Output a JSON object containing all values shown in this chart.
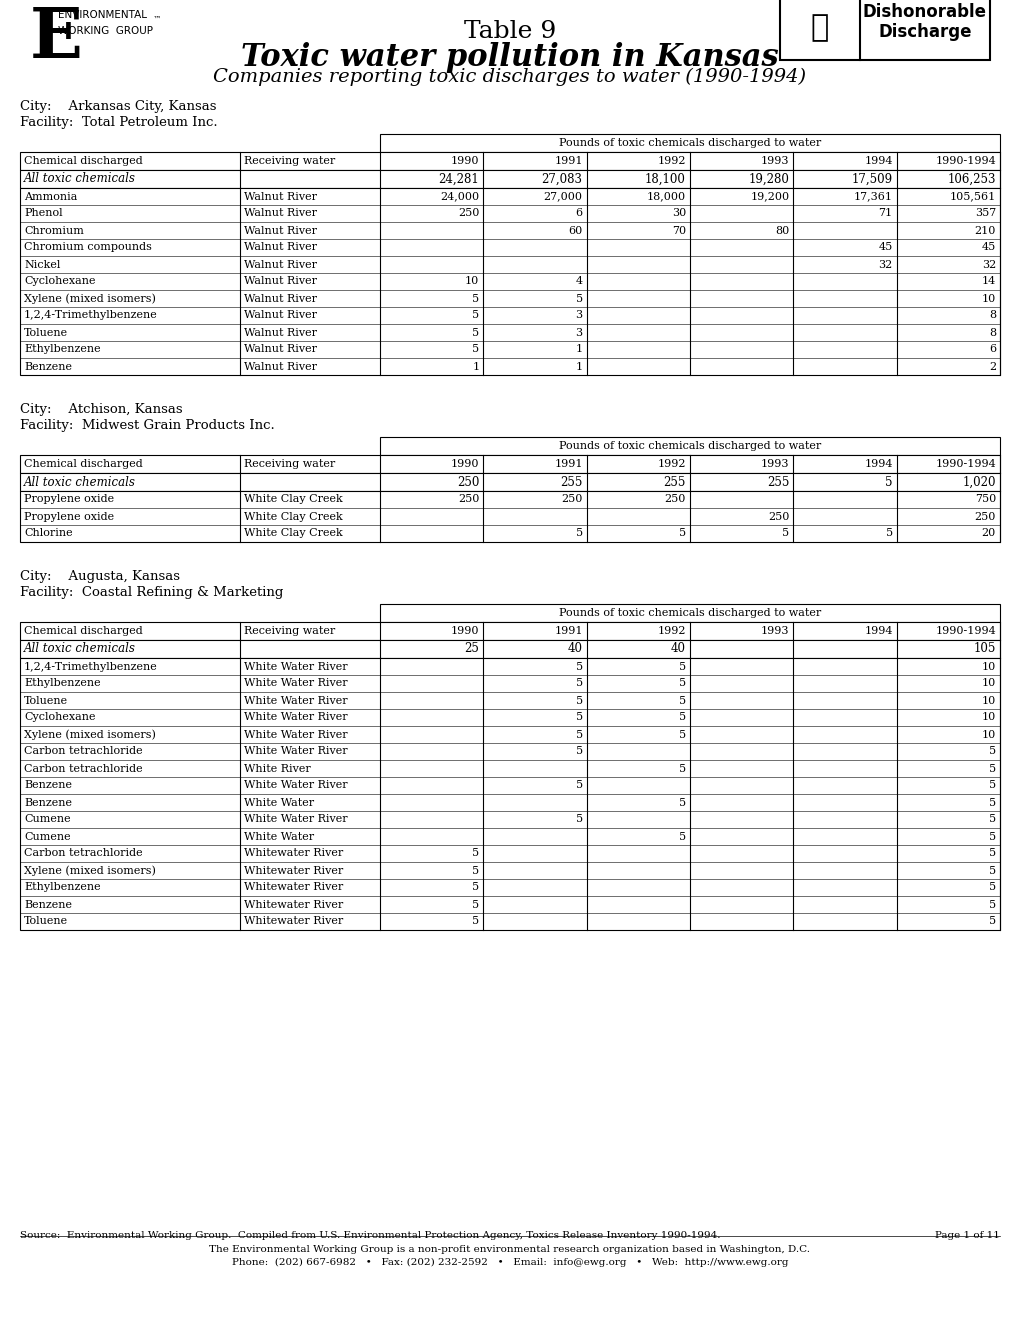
{
  "title_line1": "Table 9",
  "title_line2": "Toxic water pollution in Kansas",
  "title_line3": "Companies reporting toxic discharges to water (1990-1994)",
  "bg_color": "#ffffff",
  "table1": {
    "city": "City:    Arkansas City, Kansas",
    "facility": "Facility:  Total Petroleum Inc.",
    "header_label": "Pounds of toxic chemicals discharged to water",
    "col_headers": [
      "Chemical discharged",
      "Receiving water",
      "1990",
      "1991",
      "1992",
      "1993",
      "1994",
      "1990-1994"
    ],
    "summary_row": [
      "All toxic chemicals",
      "",
      "24,281",
      "27,083",
      "18,100",
      "19,280",
      "17,509",
      "106,253"
    ],
    "rows": [
      [
        "Ammonia",
        "Walnut River",
        "24,000",
        "27,000",
        "18,000",
        "19,200",
        "17,361",
        "105,561"
      ],
      [
        "Phenol",
        "Walnut River",
        "250",
        "6",
        "30",
        "",
        "71",
        "357"
      ],
      [
        "Chromium",
        "Walnut River",
        "",
        "60",
        "70",
        "80",
        "",
        "210"
      ],
      [
        "Chromium compounds",
        "Walnut River",
        "",
        "",
        "",
        "",
        "45",
        "45"
      ],
      [
        "Nickel",
        "Walnut River",
        "",
        "",
        "",
        "",
        "32",
        "32"
      ],
      [
        "Cyclohexane",
        "Walnut River",
        "10",
        "4",
        "",
        "",
        "",
        "14"
      ],
      [
        "Xylene (mixed isomers)",
        "Walnut River",
        "5",
        "5",
        "",
        "",
        "",
        "10"
      ],
      [
        "1,2,4-Trimethylbenzene",
        "Walnut River",
        "5",
        "3",
        "",
        "",
        "",
        "8"
      ],
      [
        "Toluene",
        "Walnut River",
        "5",
        "3",
        "",
        "",
        "",
        "8"
      ],
      [
        "Ethylbenzene",
        "Walnut River",
        "5",
        "1",
        "",
        "",
        "",
        "6"
      ],
      [
        "Benzene",
        "Walnut River",
        "1",
        "1",
        "",
        "",
        "",
        "2"
      ]
    ]
  },
  "table2": {
    "city": "City:    Atchison, Kansas",
    "facility": "Facility:  Midwest Grain Products Inc.",
    "header_label": "Pounds of toxic chemicals discharged to water",
    "col_headers": [
      "Chemical discharged",
      "Receiving water",
      "1990",
      "1991",
      "1992",
      "1993",
      "1994",
      "1990-1994"
    ],
    "summary_row": [
      "All toxic chemicals",
      "",
      "250",
      "255",
      "255",
      "255",
      "5",
      "1,020"
    ],
    "rows": [
      [
        "Propylene oxide",
        "White Clay Creek",
        "250",
        "250",
        "250",
        "",
        "",
        "750"
      ],
      [
        "Propylene oxide",
        "White Clay Creek",
        "",
        "",
        "",
        "250",
        "",
        "250"
      ],
      [
        "Chlorine",
        "White Clay Creek",
        "",
        "5",
        "5",
        "5",
        "5",
        "20"
      ]
    ]
  },
  "table3": {
    "city": "City:    Augusta, Kansas",
    "facility": "Facility:  Coastal Refining & Marketing",
    "header_label": "Pounds of toxic chemicals discharged to water",
    "col_headers": [
      "Chemical discharged",
      "Receiving water",
      "1990",
      "1991",
      "1992",
      "1993",
      "1994",
      "1990-1994"
    ],
    "summary_row": [
      "All toxic chemicals",
      "",
      "25",
      "40",
      "40",
      "",
      "",
      "105"
    ],
    "rows": [
      [
        "1,2,4-Trimethylbenzene",
        "White Water River",
        "",
        "5",
        "5",
        "",
        "",
        "10"
      ],
      [
        "Ethylbenzene",
        "White Water River",
        "",
        "5",
        "5",
        "",
        "",
        "10"
      ],
      [
        "Toluene",
        "White Water River",
        "",
        "5",
        "5",
        "",
        "",
        "10"
      ],
      [
        "Cyclohexane",
        "White Water River",
        "",
        "5",
        "5",
        "",
        "",
        "10"
      ],
      [
        "Xylene (mixed isomers)",
        "White Water River",
        "",
        "5",
        "5",
        "",
        "",
        "10"
      ],
      [
        "Carbon tetrachloride",
        "White Water River",
        "",
        "5",
        "",
        "",
        "",
        "5"
      ],
      [
        "Carbon tetrachloride",
        "White River",
        "",
        "",
        "5",
        "",
        "",
        "5"
      ],
      [
        "Benzene",
        "White Water River",
        "",
        "5",
        "",
        "",
        "",
        "5"
      ],
      [
        "Benzene",
        "White Water",
        "",
        "",
        "5",
        "",
        "",
        "5"
      ],
      [
        "Cumene",
        "White Water River",
        "",
        "5",
        "",
        "",
        "",
        "5"
      ],
      [
        "Cumene",
        "White Water",
        "",
        "",
        "5",
        "",
        "",
        "5"
      ],
      [
        "Carbon tetrachloride",
        "Whitewater River",
        "5",
        "",
        "",
        "",
        "",
        "5"
      ],
      [
        "Xylene (mixed isomers)",
        "Whitewater River",
        "5",
        "",
        "",
        "",
        "",
        "5"
      ],
      [
        "Ethylbenzene",
        "Whitewater River",
        "5",
        "",
        "",
        "",
        "",
        "5"
      ],
      [
        "Benzene",
        "Whitewater River",
        "5",
        "",
        "",
        "",
        "",
        "5"
      ],
      [
        "Toluene",
        "Whitewater River",
        "5",
        "",
        "",
        "",
        "",
        "5"
      ]
    ]
  },
  "footer_source": "Source:  Environmental Working Group.  Compiled from U.S. Environmental Protection Agency, Toxics Release Inventory 1990-1994.",
  "footer_page": "Page 1 of 11",
  "footer_line2": "The Environmental Working Group is a non-profit environmental research organization based in Washington, D.C.",
  "footer_line3": "Phone:  (202) 667-6982   •   Fax: (202) 232-2592   •   Email:  info@ewg.org   •   Web:  http://www.ewg.org"
}
